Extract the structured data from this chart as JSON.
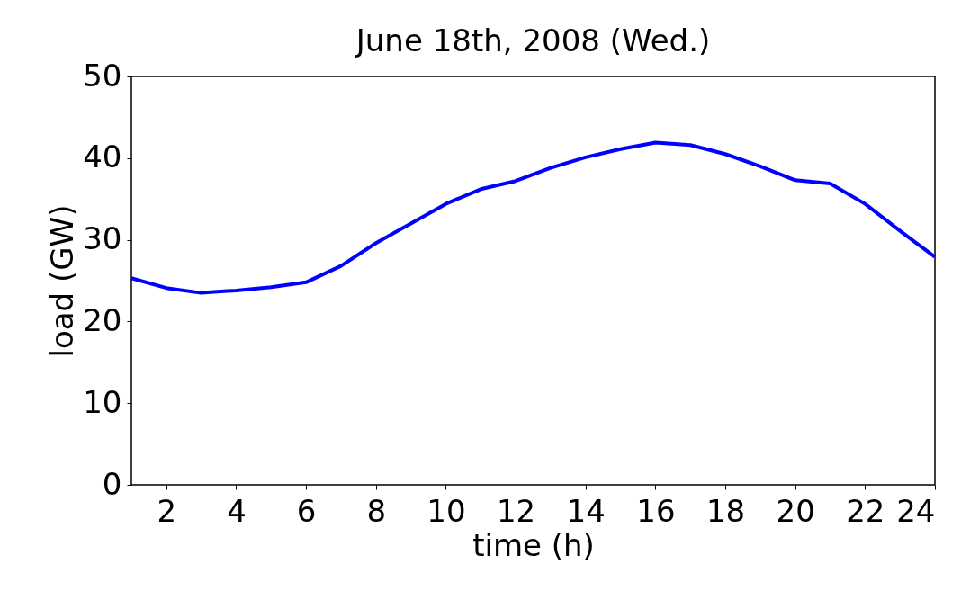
{
  "chart_data": {
    "type": "line",
    "title": "June 18th, 2008 (Wed.)",
    "xlabel": "time (h)",
    "ylabel": "load (GW)",
    "x": [
      1,
      2,
      3,
      4,
      5,
      6,
      7,
      8,
      9,
      10,
      11,
      12,
      13,
      14,
      15,
      16,
      17,
      18,
      19,
      20,
      21,
      22,
      23,
      24
    ],
    "series": [
      {
        "color": "#0000ff",
        "values": [
          25.3,
          24.1,
          23.5,
          23.8,
          24.2,
          24.8,
          26.8,
          29.6,
          32.0,
          34.4,
          36.2,
          37.2,
          38.8,
          40.1,
          41.1,
          41.9,
          41.6,
          40.5,
          39.0,
          37.3,
          36.9,
          34.4,
          31.1,
          27.9
        ]
      }
    ],
    "xlim": [
      1,
      24
    ],
    "xticks": [
      2,
      4,
      6,
      8,
      10,
      12,
      14,
      16,
      18,
      20,
      22,
      24
    ],
    "ylim": [
      0,
      50
    ],
    "yticks": [
      0,
      10,
      20,
      30,
      40,
      50
    ],
    "grid": false,
    "marker": "none",
    "line_style": "solid"
  }
}
